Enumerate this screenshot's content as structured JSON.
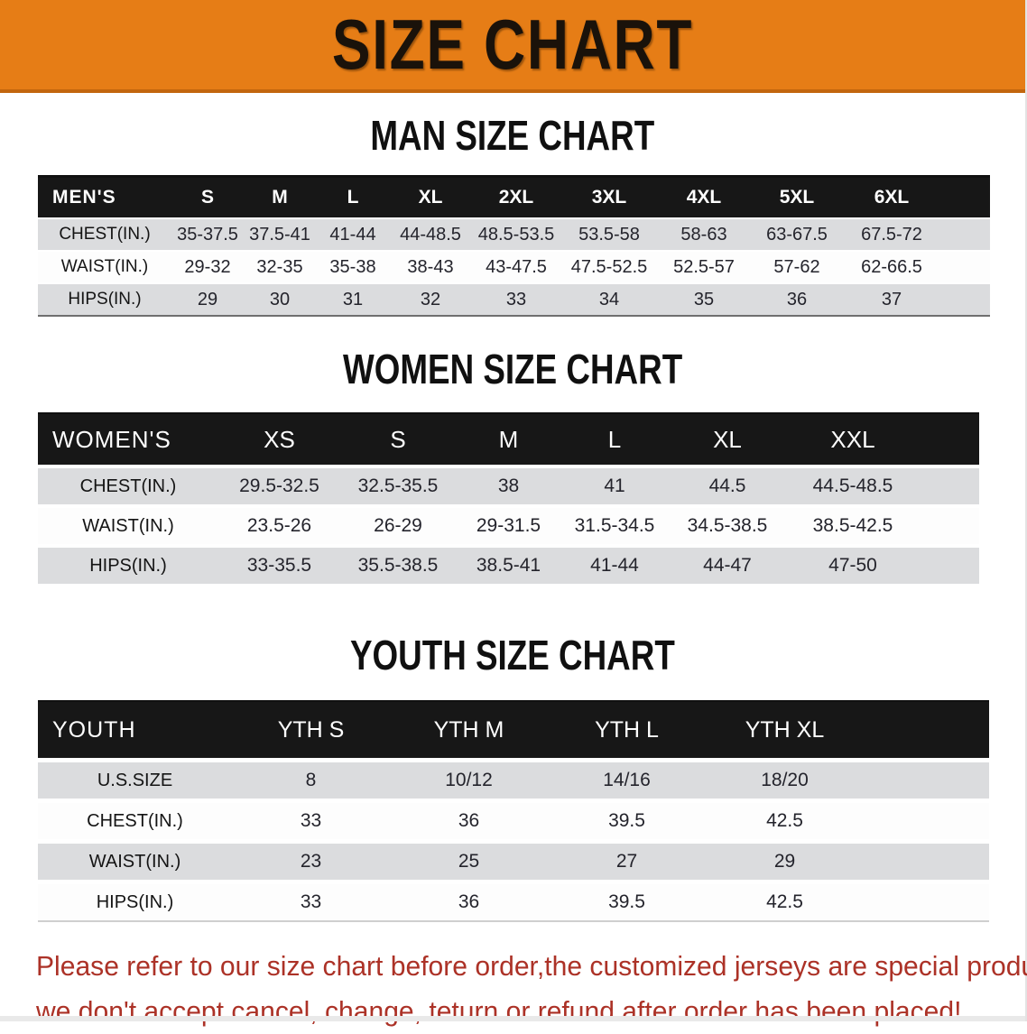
{
  "banner": {
    "title": "SIZE CHART",
    "bg_color": "#E67D16"
  },
  "sections": [
    {
      "title": "MAN SIZE CHART",
      "table": {
        "header_label": "MEN'S",
        "columns": [
          "S",
          "M",
          "L",
          "XL",
          "2XL",
          "3XL",
          "4XL",
          "5XL",
          "6XL"
        ],
        "rows": [
          {
            "label": "CHEST(IN.)",
            "values": [
              "35-37.5",
              "37.5-41",
              "41-44",
              "44-48.5",
              "48.5-53.5",
              "53.5-58",
              "58-63",
              "63-67.5",
              "67.5-72"
            ]
          },
          {
            "label": "WAIST(IN.)",
            "values": [
              "29-32",
              "32-35",
              "35-38",
              "38-43",
              "43-47.5",
              "47.5-52.5",
              "52.5-57",
              "57-62",
              "62-66.5"
            ]
          },
          {
            "label": "HIPS(IN.)",
            "values": [
              "29",
              "30",
              "31",
              "32",
              "33",
              "34",
              "35",
              "36",
              "37"
            ]
          }
        ]
      }
    },
    {
      "title": "WOMEN SIZE CHART",
      "table": {
        "header_label": "WOMEN'S",
        "columns": [
          "XS",
          "S",
          "M",
          "L",
          "XL",
          "XXL"
        ],
        "rows": [
          {
            "label": "CHEST(IN.)",
            "values": [
              "29.5-32.5",
              "32.5-35.5",
              "38",
              "41",
              "44.5",
              "44.5-48.5"
            ]
          },
          {
            "label": "WAIST(IN.)",
            "values": [
              "23.5-26",
              "26-29",
              "29-31.5",
              "31.5-34.5",
              "34.5-38.5",
              "38.5-42.5"
            ]
          },
          {
            "label": "HIPS(IN.)",
            "values": [
              "33-35.5",
              "35.5-38.5",
              "38.5-41",
              "41-44",
              "44-47",
              "47-50"
            ]
          }
        ]
      }
    },
    {
      "title": "YOUTH SIZE CHART",
      "table": {
        "header_label": "YOUTH",
        "columns": [
          "YTH S",
          "YTH M",
          "YTH L",
          "YTH XL"
        ],
        "rows": [
          {
            "label": "U.S.SIZE",
            "values": [
              "8",
              "10/12",
              "14/16",
              "18/20"
            ]
          },
          {
            "label": "CHEST(IN.)",
            "values": [
              "33",
              "36",
              "39.5",
              "42.5"
            ]
          },
          {
            "label": "WAIST(IN.)",
            "values": [
              "23",
              "25",
              "27",
              "29"
            ]
          },
          {
            "label": "HIPS(IN.)",
            "values": [
              "33",
              "36",
              "39.5",
              "42.5"
            ]
          }
        ]
      }
    }
  ],
  "disclaimer": {
    "line1": "Please refer to our size chart before order,the customized jerseys are special products,",
    "line2": "we don't accept cancel, change, teturn or refund after order has been placed!",
    "color": "#ac3227"
  }
}
